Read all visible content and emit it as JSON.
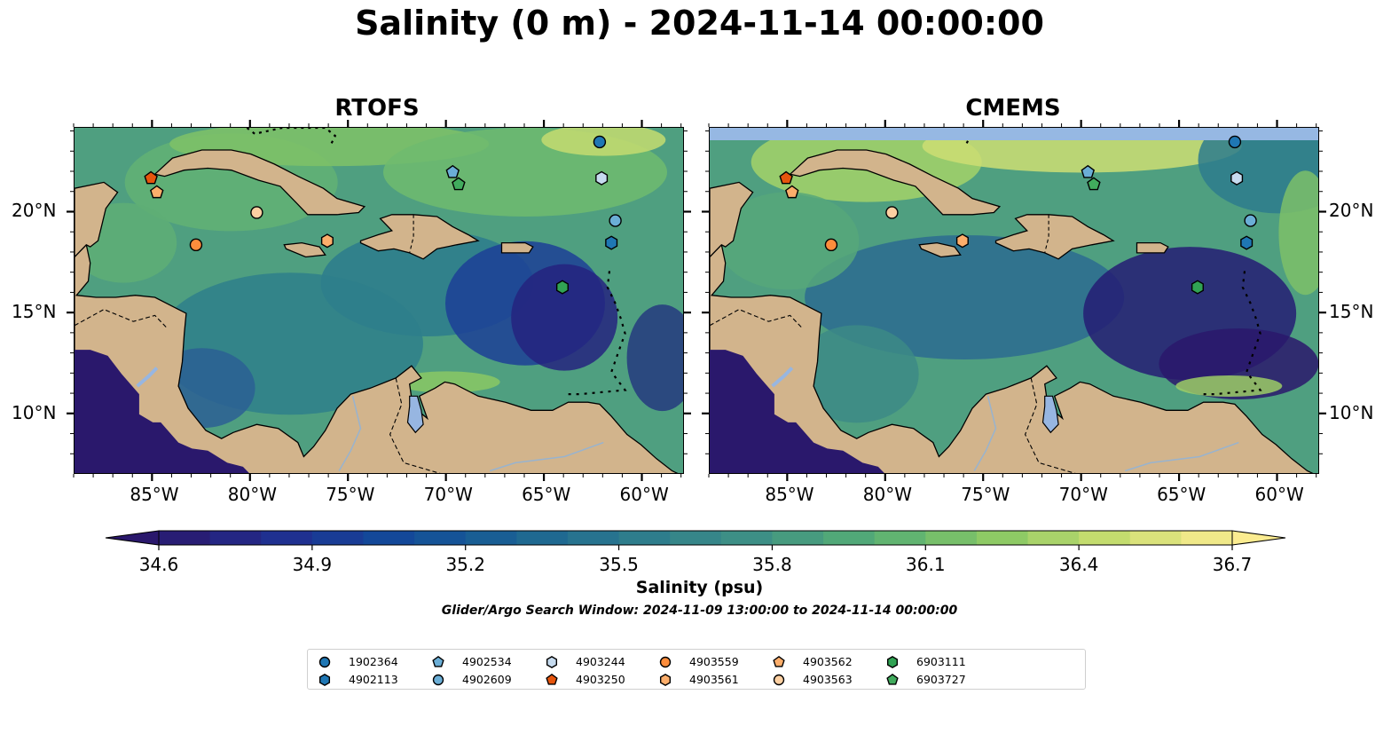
{
  "title": "Salinity (0 m) - 2024-11-14 00:00:00",
  "panels": [
    {
      "name": "RTOFS"
    },
    {
      "name": "CMEMS"
    }
  ],
  "axes": {
    "lon_ticks": [
      "85°W",
      "80°W",
      "75°W",
      "70°W",
      "65°W",
      "60°W"
    ],
    "lat_ticks": [
      "20°N",
      "15°N",
      "10°N"
    ]
  },
  "colorbar": {
    "label": "Salinity (psu)",
    "ticks": [
      "34.6",
      "34.9",
      "35.2",
      "35.5",
      "35.8",
      "36.1",
      "36.4",
      "36.7"
    ],
    "range": [
      34.6,
      36.7
    ],
    "colormap_colors": [
      "#2a186c",
      "#202e8f",
      "#124a9a",
      "#1b6492",
      "#2d7b8d",
      "#3e9185",
      "#56ae75",
      "#8ac864",
      "#c7dd6f",
      "#fbec90"
    ]
  },
  "search_window": "Glider/Argo Search Window: 2024-11-09 13:00:00 to 2024-11-14 00:00:00",
  "colors": {
    "land": "#d2b48c",
    "lake": "#97b6e1",
    "ocean_deep": "#2a186c"
  },
  "legend": [
    {
      "id": "1902364",
      "marker": "circle",
      "color": "#1f77b4"
    },
    {
      "id": "4902113",
      "marker": "hexagon",
      "color": "#1f77b4"
    },
    {
      "id": "4902534",
      "marker": "pentagon",
      "color": "#6baed6"
    },
    {
      "id": "4902609",
      "marker": "circle",
      "color": "#6baed6"
    },
    {
      "id": "4903244",
      "marker": "hexagon",
      "color": "#c6dbef"
    },
    {
      "id": "4903250",
      "marker": "pentagon",
      "color": "#e6550d"
    },
    {
      "id": "4903559",
      "marker": "circle",
      "color": "#fd8d3c"
    },
    {
      "id": "4903561",
      "marker": "hexagon",
      "color": "#fdae6b"
    },
    {
      "id": "4903562",
      "marker": "pentagon",
      "color": "#fdae6b"
    },
    {
      "id": "4903563",
      "marker": "circle",
      "color": "#fdd0a2"
    },
    {
      "id": "6903111",
      "marker": "hexagon",
      "color": "#31a354"
    },
    {
      "id": "6903727",
      "marker": "pentagon",
      "color": "#41ab5d"
    }
  ],
  "floats": [
    {
      "id": "1902364",
      "lon": -62.2,
      "lat": 23.5
    },
    {
      "id": "4903244",
      "lon": -62.1,
      "lat": 21.7
    },
    {
      "id": "4902609",
      "lon": -61.4,
      "lat": 19.6
    },
    {
      "id": "4902113",
      "lon": -61.6,
      "lat": 18.5
    },
    {
      "id": "4902534",
      "lon": -69.7,
      "lat": 22.0
    },
    {
      "id": "6903727",
      "lon": -69.4,
      "lat": 21.4
    },
    {
      "id": "6903111",
      "lon": -64.1,
      "lat": 16.3
    },
    {
      "id": "4903250",
      "lon": -85.1,
      "lat": 21.7
    },
    {
      "id": "4903562",
      "lon": -84.8,
      "lat": 21.0
    },
    {
      "id": "4903563",
      "lon": -79.7,
      "lat": 20.0
    },
    {
      "id": "4903559",
      "lon": -82.8,
      "lat": 18.4
    },
    {
      "id": "4903561",
      "lon": -76.1,
      "lat": 18.6
    }
  ]
}
